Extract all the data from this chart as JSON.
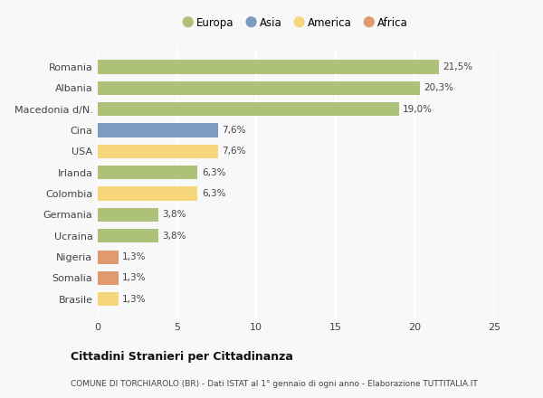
{
  "categories": [
    "Romania",
    "Albania",
    "Macedonia d/N.",
    "Cina",
    "USA",
    "Irlanda",
    "Colombia",
    "Germania",
    "Ucraina",
    "Nigeria",
    "Somalia",
    "Brasile"
  ],
  "values": [
    21.5,
    20.3,
    19.0,
    7.6,
    7.6,
    6.3,
    6.3,
    3.8,
    3.8,
    1.3,
    1.3,
    1.3
  ],
  "labels": [
    "21,5%",
    "20,3%",
    "19,0%",
    "7,6%",
    "7,6%",
    "6,3%",
    "6,3%",
    "3,8%",
    "3,8%",
    "1,3%",
    "1,3%",
    "1,3%"
  ],
  "colors": [
    "#adc178",
    "#adc178",
    "#adc178",
    "#7b9cbe",
    "#f5d67a",
    "#adc178",
    "#f5d67a",
    "#adc178",
    "#adc178",
    "#e09a6e",
    "#e09a6e",
    "#f5d67a"
  ],
  "legend": [
    {
      "label": "Europa",
      "color": "#adc178"
    },
    {
      "label": "Asia",
      "color": "#7b9cbe"
    },
    {
      "label": "America",
      "color": "#f5d67a"
    },
    {
      "label": "Africa",
      "color": "#e09a6e"
    }
  ],
  "xlim": [
    0,
    25
  ],
  "xticks": [
    0,
    5,
    10,
    15,
    20,
    25
  ],
  "title": "Cittadini Stranieri per Cittadinanza",
  "subtitle": "COMUNE DI TORCHIAROLO (BR) - Dati ISTAT al 1° gennaio di ogni anno - Elaborazione TUTTITALIA.IT",
  "background_color": "#f8f8f8",
  "bar_height": 0.65
}
